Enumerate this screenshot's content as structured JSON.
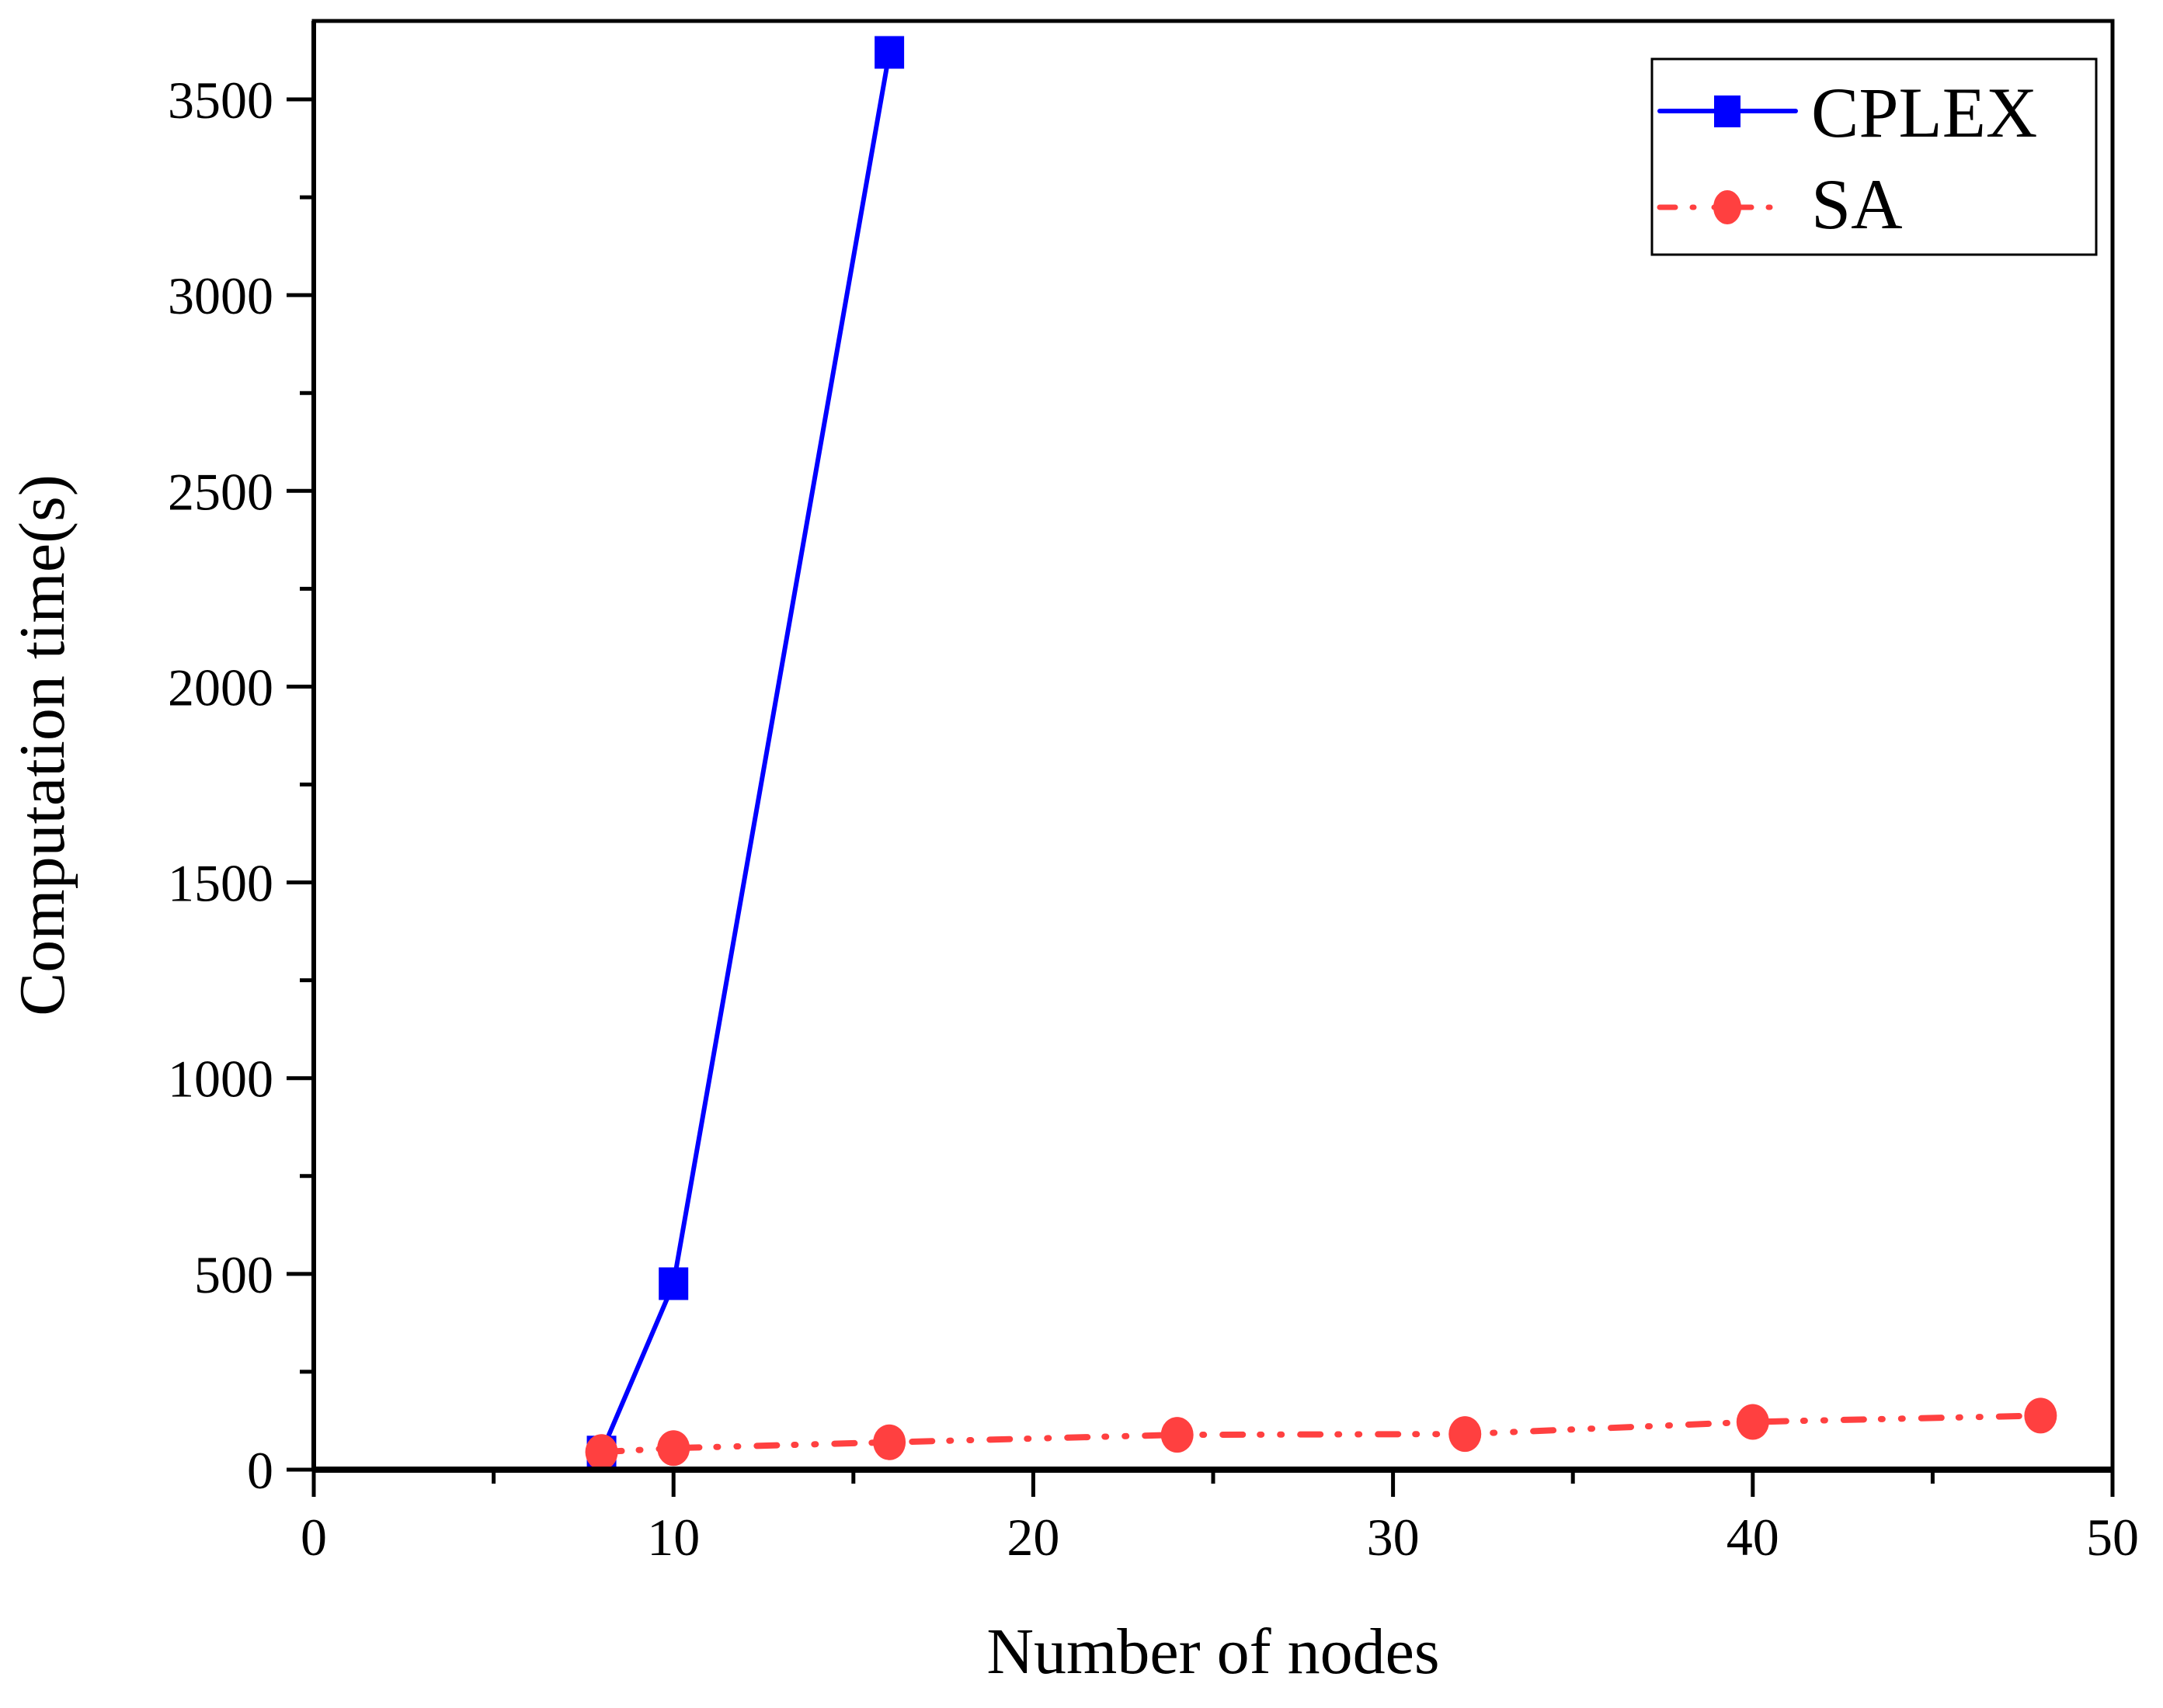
{
  "chart_data": {
    "type": "line",
    "title": "",
    "xlabel": "Number of nodes",
    "ylabel": "Computation time(s)",
    "xlim": [
      0,
      50
    ],
    "ylim": [
      0,
      3650
    ],
    "x_ticks": [
      0,
      10,
      20,
      30,
      40,
      50
    ],
    "x_minor_ticks": [
      5,
      15,
      25,
      35,
      45
    ],
    "y_ticks": [
      0,
      500,
      1000,
      1500,
      2000,
      2500,
      3000,
      3500
    ],
    "y_minor_ticks": [
      250,
      750,
      1250,
      1750,
      2250,
      2750,
      3250
    ],
    "grid": false,
    "legend_position": "upper right",
    "series": [
      {
        "name": "CPLEX",
        "color": "#0000ff",
        "line_style": "solid",
        "marker": "square",
        "x": [
          8,
          10,
          16
        ],
        "values": [
          45,
          475,
          3620
        ]
      },
      {
        "name": "SA",
        "color": "#ff4040",
        "line_style": "dash-dot-dot",
        "marker": "circle",
        "x": [
          8,
          10,
          16,
          24,
          32,
          40,
          48
        ],
        "values": [
          45,
          55,
          70,
          89,
          91,
          122,
          138
        ]
      }
    ]
  }
}
